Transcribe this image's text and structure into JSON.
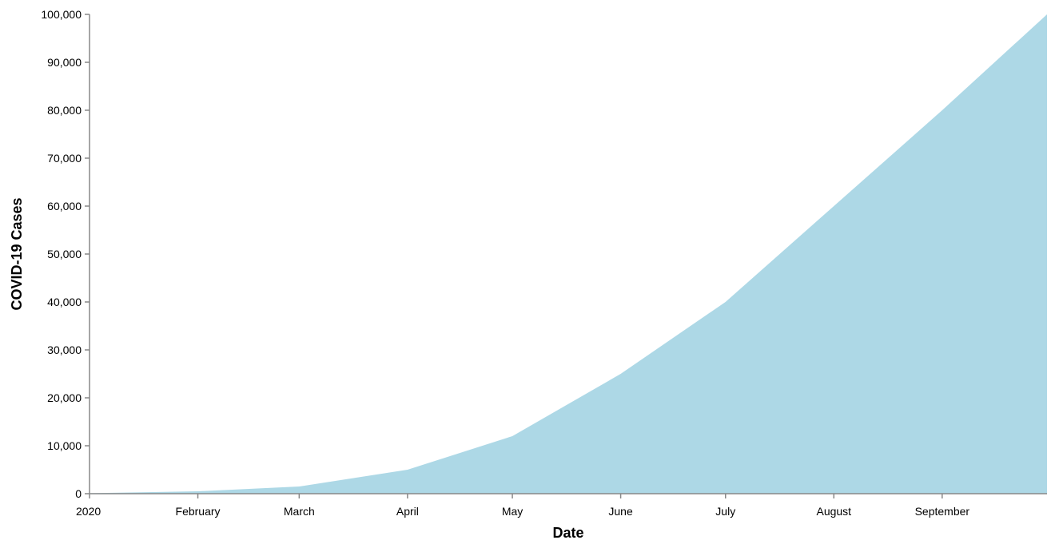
{
  "chart_data": {
    "type": "area",
    "title": "",
    "xlabel": "Date",
    "ylabel": "COVID-19 Cases",
    "x": [
      "2020-01-01",
      "2020-02-01",
      "2020-03-01",
      "2020-04-01",
      "2020-05-01",
      "2020-06-01",
      "2020-07-01",
      "2020-08-01",
      "2020-09-01",
      "2020-10-01"
    ],
    "series": [
      {
        "values": [
          100,
          500,
          1500,
          5000,
          12000,
          25000,
          40000,
          60000,
          80000,
          100000
        ]
      }
    ],
    "ylim": [
      0,
      100000
    ],
    "xlim": [
      "2020-01-01",
      "2020-10-01"
    ],
    "y_ticks": [
      "0",
      "10,000",
      "20,000",
      "30,000",
      "40,000",
      "50,000",
      "60,000",
      "70,000",
      "80,000",
      "90,000",
      "100,000"
    ],
    "x_ticks": [
      "2020",
      "February",
      "March",
      "April",
      "May",
      "June",
      "July",
      "August",
      "September"
    ],
    "fill_color": "#add8e6",
    "axis_color": "#888888",
    "grid": false,
    "legend": "none"
  }
}
